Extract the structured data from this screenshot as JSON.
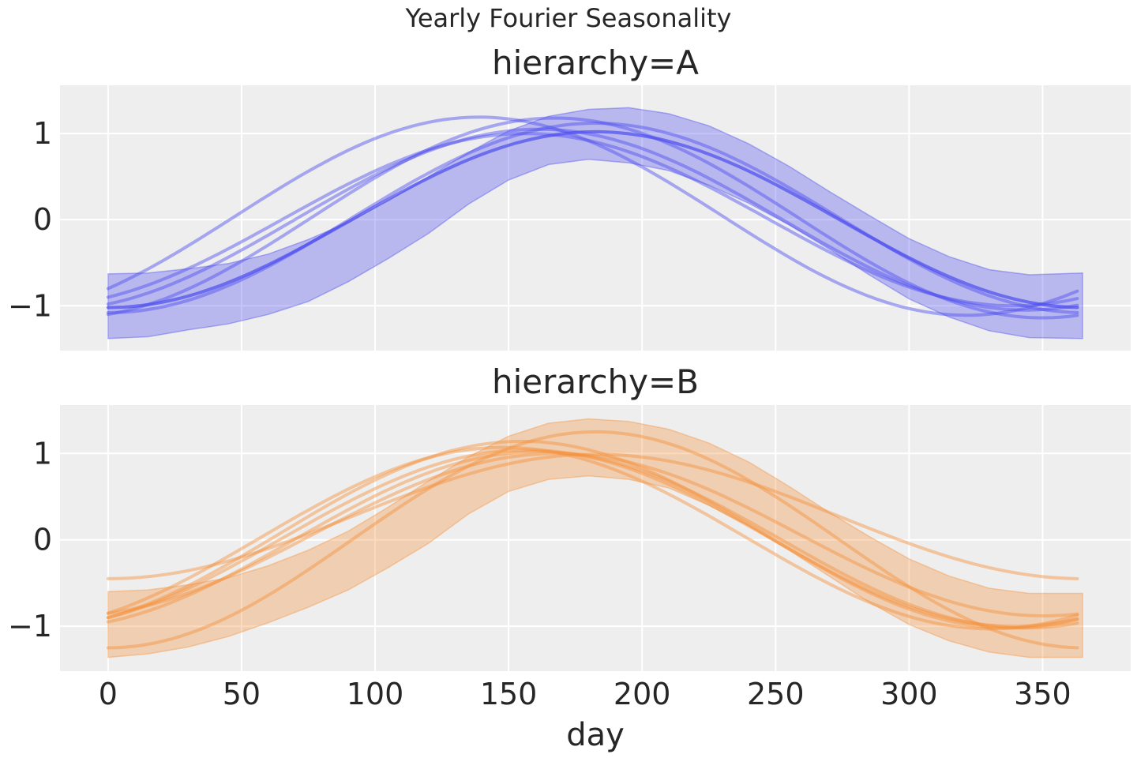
{
  "chart_data": {
    "type": "line",
    "title": "Yearly Fourier Seasonality",
    "xlabel": "day",
    "xlim": [
      -18,
      383
    ],
    "x_ticks": [
      0,
      50,
      100,
      150,
      200,
      250,
      300,
      350
    ],
    "y_ticks": [
      -1,
      0,
      1
    ],
    "y_tick_labels": [
      "−1",
      "0",
      "1"
    ],
    "grid": true,
    "legend": "none",
    "panels": [
      {
        "title": "hierarchy=A",
        "color": "#4c4cf0",
        "ylim": [
          -1.52,
          1.56
        ],
        "band": {
          "x": [
            0,
            15,
            30,
            45,
            60,
            75,
            90,
            105,
            120,
            135,
            150,
            165,
            180,
            195,
            210,
            225,
            240,
            255,
            270,
            285,
            300,
            315,
            330,
            345,
            365
          ],
          "upper": [
            -0.63,
            -0.62,
            -0.57,
            -0.51,
            -0.4,
            -0.23,
            -0.03,
            0.22,
            0.5,
            0.78,
            1.03,
            1.2,
            1.28,
            1.3,
            1.23,
            1.09,
            0.88,
            0.62,
            0.33,
            0.05,
            -0.22,
            -0.43,
            -0.58,
            -0.64,
            -0.62
          ],
          "lower": [
            -1.38,
            -1.36,
            -1.28,
            -1.21,
            -1.1,
            -0.95,
            -0.72,
            -0.45,
            -0.16,
            0.18,
            0.46,
            0.64,
            0.7,
            0.66,
            0.57,
            0.4,
            0.19,
            -0.06,
            -0.34,
            -0.64,
            -0.92,
            -1.13,
            -1.29,
            -1.37,
            -1.38
          ]
        },
        "samples": [
          {
            "amp": 1.02,
            "offset": 0.0,
            "phase": -1.02
          },
          {
            "amp": 1.05,
            "offset": 0.0,
            "phase": -0.98
          },
          {
            "amp": 1.15,
            "offset": 0.04,
            "phase": -0.8
          },
          {
            "amp": 1.0,
            "offset": 0.0,
            "phase": -0.9
          },
          {
            "amp": 1.1,
            "offset": 0.02,
            "phase": -1.22
          },
          {
            "amp": 1.16,
            "offset": 0.02,
            "phase": -1.1
          },
          {
            "amp": 1.02,
            "offset": 0.0,
            "phase": -1.1
          }
        ]
      },
      {
        "title": "hierarchy=B",
        "color": "#f5903a",
        "ylim": [
          -1.52,
          1.56
        ],
        "band": {
          "x": [
            0,
            15,
            30,
            45,
            60,
            75,
            90,
            105,
            120,
            135,
            150,
            165,
            180,
            195,
            210,
            225,
            240,
            255,
            270,
            285,
            300,
            315,
            330,
            345,
            365
          ],
          "upper": [
            -0.6,
            -0.58,
            -0.52,
            -0.44,
            -0.3,
            -0.12,
            0.1,
            0.38,
            0.68,
            0.96,
            1.2,
            1.35,
            1.4,
            1.37,
            1.28,
            1.12,
            0.9,
            0.62,
            0.32,
            0.04,
            -0.22,
            -0.42,
            -0.56,
            -0.62,
            -0.62
          ],
          "lower": [
            -1.36,
            -1.32,
            -1.24,
            -1.12,
            -0.96,
            -0.78,
            -0.58,
            -0.32,
            -0.04,
            0.3,
            0.56,
            0.7,
            0.74,
            0.7,
            0.6,
            0.4,
            0.16,
            -0.12,
            -0.42,
            -0.72,
            -0.98,
            -1.17,
            -1.3,
            -1.36,
            -1.36
          ]
        },
        "samples": [
          {
            "amp": 0.72,
            "offset": 0.27,
            "phase": -0.45
          },
          {
            "amp": 1.02,
            "offset": 0.02,
            "phase": -0.9
          },
          {
            "amp": 1.08,
            "offset": 0.06,
            "phase": -0.9
          },
          {
            "amp": 0.94,
            "offset": 0.06,
            "phase": -0.85
          },
          {
            "amp": 1.02,
            "offset": 0.0,
            "phase": -0.95
          },
          {
            "amp": 1.25,
            "offset": 0.0,
            "phase": -1.25
          },
          {
            "amp": 1.05,
            "offset": 0.02,
            "phase": -0.85
          }
        ]
      }
    ]
  }
}
